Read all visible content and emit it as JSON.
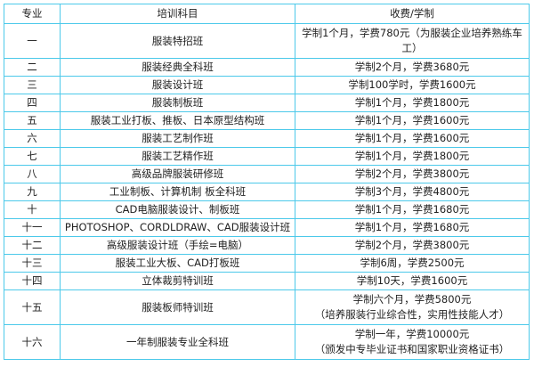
{
  "headers": [
    "专业",
    "培训科目",
    "收费/学制"
  ],
  "rows": [
    {
      "no": "一",
      "course": "服装特招班",
      "fee": "学制1个月，学费780元（为服装企业培养熟练车工）"
    },
    {
      "no": "二",
      "course": "服装经典全科班",
      "fee": "学制2个月，学费3680元"
    },
    {
      "no": "三",
      "course": "服装设计班",
      "fee": "学制100学时，学费1600元"
    },
    {
      "no": "四",
      "course": "服装制板班",
      "fee": "学制1个月，学费1800元"
    },
    {
      "no": "五",
      "course": "服装工业打板、推板、日本原型结构班",
      "fee": "学制1个月，学费1600元"
    },
    {
      "no": "六",
      "course": "服装工艺制作班",
      "fee": "学制1个月，学费1600元"
    },
    {
      "no": "七",
      "course": "服装工艺精作班",
      "fee": "学制1个月，学费1800元"
    },
    {
      "no": "八",
      "course": "高级品牌服装研修班",
      "fee": "学制2个月，学费3800元"
    },
    {
      "no": "九",
      "course": "工业制板、计算机制 板全科班",
      "fee": "学制3个月，学费4800元"
    },
    {
      "no": "十",
      "course": "CAD电脑服装设计、制板班",
      "fee": "学制1个月，学费1680元"
    },
    {
      "no": "十一",
      "course": "PHOTOSHOP、CORDLDRAW、CAD服装设计班",
      "fee": "学制1个月，学费1680元"
    },
    {
      "no": "十二",
      "course": "高级服装设计班（手绘=电脑）",
      "fee": "学制2个月，学费3800元"
    },
    {
      "no": "十三",
      "course": "服装工业大板、CAD打板班",
      "fee": "学制6周，学费2500元"
    },
    {
      "no": "十四",
      "course": "立体裁剪特训班",
      "fee": "学制10天，学费1600元"
    },
    {
      "no": "十五",
      "course": "服装板师特训班",
      "fee": "学制六个月，学费5800元",
      "fee_note": "（培养服装行业综合性，实用性技能人才）"
    },
    {
      "no": "十六",
      "course": "一年制服装专业全科班",
      "fee": "学制一年，学费10000元",
      "fee_note": "（颁发中专毕业证书和国家职业资格证书）"
    }
  ],
  "border_color": "#4cc9ea"
}
